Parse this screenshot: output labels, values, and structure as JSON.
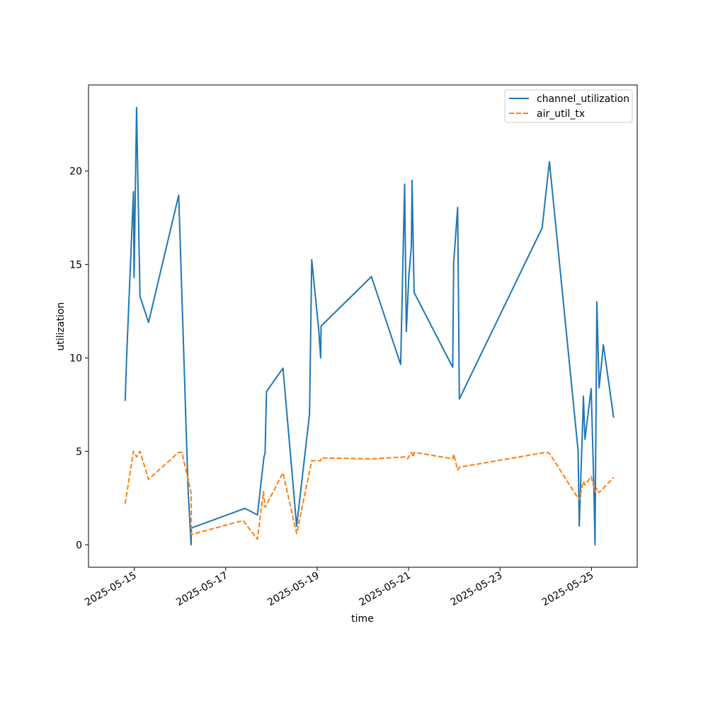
{
  "chart_data": {
    "type": "line",
    "xlabel": "time",
    "ylabel": "utilization",
    "x_axis_type": "datetime",
    "xlim": [
      "2025-05-14T00:00",
      "2025-05-26T00:00"
    ],
    "ylim": [
      -1.2,
      24.6
    ],
    "x_ticks": [
      "2025-05-15",
      "2025-05-17",
      "2025-05-19",
      "2025-05-21",
      "2025-05-23",
      "2025-05-25"
    ],
    "y_ticks": [
      0,
      5,
      10,
      15,
      20
    ],
    "grid": false,
    "legend": {
      "placement": "top-right",
      "entries": [
        "channel_utilization",
        "air_util_tx"
      ]
    },
    "series": [
      {
        "name": "channel_utilization",
        "color": "#1f77b4",
        "style": "solid",
        "points": [
          [
            "2025-05-14T19:15",
            7.7
          ],
          [
            "2025-05-14T20:00",
            10.0
          ],
          [
            "2025-05-14T23:35",
            18.9
          ],
          [
            "2025-05-14T23:55",
            14.3
          ],
          [
            "2025-05-15T01:15",
            23.4
          ],
          [
            "2025-05-15T03:00",
            13.3
          ],
          [
            "2025-05-15T07:30",
            11.9
          ],
          [
            "2025-05-15T23:20",
            18.7
          ],
          [
            "2025-05-16T04:15",
            3.0
          ],
          [
            "2025-05-16T05:50",
            0.0
          ],
          [
            "2025-05-16T06:00",
            0.9
          ],
          [
            "2025-05-17T10:05",
            1.95
          ],
          [
            "2025-05-17T16:40",
            1.6
          ],
          [
            "2025-05-17T20:05",
            4.7
          ],
          [
            "2025-05-17T20:40",
            4.9
          ],
          [
            "2025-05-17T21:25",
            8.2
          ],
          [
            "2025-05-18T06:05",
            9.45
          ],
          [
            "2025-05-18T13:15",
            1.0
          ],
          [
            "2025-05-18T20:00",
            7.0
          ],
          [
            "2025-05-18T21:10",
            15.25
          ],
          [
            "2025-05-19T00:50",
            11.5
          ],
          [
            "2025-05-19T01:50",
            10.0
          ],
          [
            "2025-05-19T02:05",
            11.7
          ],
          [
            "2025-05-20T04:30",
            14.35
          ],
          [
            "2025-05-20T19:50",
            9.65
          ],
          [
            "2025-05-20T21:55",
            19.3
          ],
          [
            "2025-05-20T22:50",
            11.4
          ],
          [
            "2025-05-21T00:10",
            14.4
          ],
          [
            "2025-05-21T01:30",
            16.0
          ],
          [
            "2025-05-21T01:50",
            19.5
          ],
          [
            "2025-05-21T02:55",
            13.5
          ],
          [
            "2025-05-21T23:10",
            9.5
          ],
          [
            "2025-05-21T23:40",
            15.1
          ],
          [
            "2025-05-22T01:45",
            18.05
          ],
          [
            "2025-05-22T02:40",
            7.8
          ],
          [
            "2025-05-23T22:05",
            16.95
          ],
          [
            "2025-05-24T01:55",
            20.5
          ],
          [
            "2025-05-24T17:00",
            5.0
          ],
          [
            "2025-05-24T17:35",
            1.0
          ],
          [
            "2025-05-24T19:25",
            6.7
          ],
          [
            "2025-05-24T19:45",
            7.95
          ],
          [
            "2025-05-24T20:35",
            5.65
          ],
          [
            "2025-05-24T23:50",
            8.35
          ],
          [
            "2025-05-25T01:15",
            3.0
          ],
          [
            "2025-05-25T01:50",
            0.0
          ],
          [
            "2025-05-25T02:50",
            13.0
          ],
          [
            "2025-05-25T04:00",
            8.4
          ],
          [
            "2025-05-25T06:15",
            10.7
          ],
          [
            "2025-05-25T11:40",
            6.8
          ]
        ]
      },
      {
        "name": "air_util_tx",
        "color": "#ff7f0e",
        "style": "dashed",
        "points": [
          [
            "2025-05-14T19:15",
            2.2
          ],
          [
            "2025-05-14T23:35",
            5.0
          ],
          [
            "2025-05-15T01:15",
            4.7
          ],
          [
            "2025-05-15T03:00",
            5.0
          ],
          [
            "2025-05-15T07:30",
            3.5
          ],
          [
            "2025-05-15T23:20",
            4.95
          ],
          [
            "2025-05-16T01:00",
            4.95
          ],
          [
            "2025-05-16T05:50",
            2.8
          ],
          [
            "2025-05-16T06:00",
            0.55
          ],
          [
            "2025-05-17T09:05",
            1.3
          ],
          [
            "2025-05-17T16:40",
            0.3
          ],
          [
            "2025-05-17T19:50",
            2.85
          ],
          [
            "2025-05-17T20:40",
            2.0
          ],
          [
            "2025-05-18T06:05",
            3.85
          ],
          [
            "2025-05-18T13:15",
            0.6
          ],
          [
            "2025-05-18T21:10",
            4.5
          ],
          [
            "2025-05-19T01:50",
            4.5
          ],
          [
            "2025-05-19T02:05",
            4.65
          ],
          [
            "2025-05-20T04:30",
            4.6
          ],
          [
            "2025-05-20T21:55",
            4.7
          ],
          [
            "2025-05-20T23:30",
            4.6
          ],
          [
            "2025-05-21T01:30",
            4.95
          ],
          [
            "2025-05-21T02:30",
            4.7
          ],
          [
            "2025-05-21T02:55",
            4.95
          ],
          [
            "2025-05-21T23:10",
            4.6
          ],
          [
            "2025-05-21T23:40",
            4.85
          ],
          [
            "2025-05-22T01:45",
            4.0
          ],
          [
            "2025-05-22T02:40",
            4.15
          ],
          [
            "2025-05-24T00:10",
            4.95
          ],
          [
            "2025-05-24T01:55",
            4.9
          ],
          [
            "2025-05-24T17:35",
            2.4
          ],
          [
            "2025-05-24T19:45",
            3.4
          ],
          [
            "2025-05-24T20:35",
            3.2
          ],
          [
            "2025-05-24T23:50",
            3.65
          ],
          [
            "2025-05-25T01:50",
            2.85
          ],
          [
            "2025-05-25T02:50",
            3.0
          ],
          [
            "2025-05-25T04:00",
            2.8
          ],
          [
            "2025-05-25T11:40",
            3.6
          ]
        ]
      }
    ]
  }
}
